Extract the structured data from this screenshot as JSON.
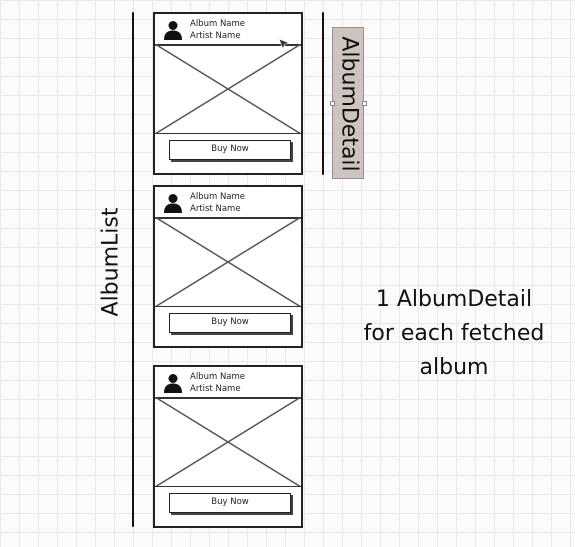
{
  "album_list": {
    "label": "AlbumList",
    "cards": [
      {
        "album_name": "Album Name",
        "artist_name": "Artist Name",
        "button_label": "Buy Now"
      },
      {
        "album_name": "Album Name",
        "artist_name": "Artist Name",
        "button_label": "Buy Now"
      },
      {
        "album_name": "Album Name",
        "artist_name": "Artist Name",
        "button_label": "Buy Now"
      }
    ]
  },
  "album_detail": {
    "label": "AlbumDetail",
    "highlight_color": "#cdc3bf"
  },
  "note": {
    "lines": [
      "1 AlbumDetail",
      "for each fetched",
      "album"
    ]
  }
}
